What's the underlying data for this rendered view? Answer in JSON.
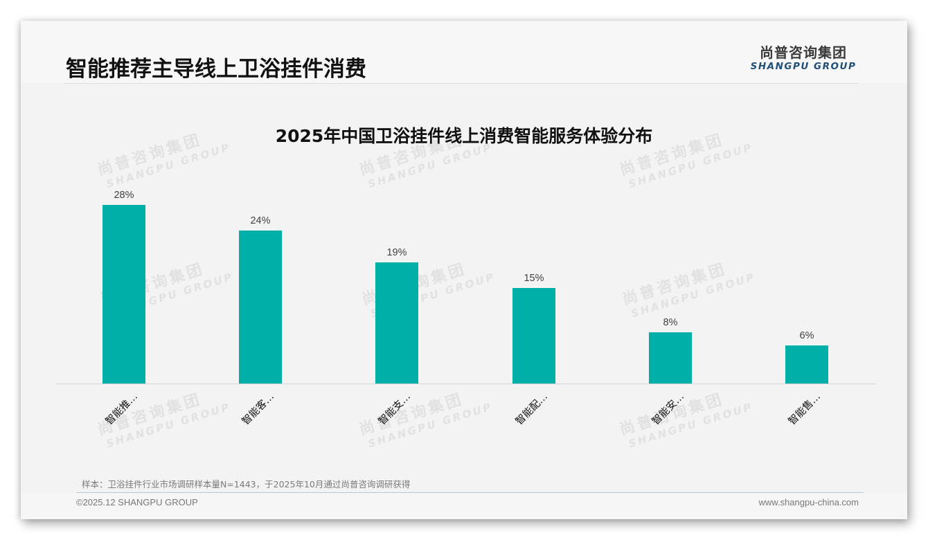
{
  "header": {
    "page_title": "智能推荐主导线上卫浴挂件消费",
    "logo_cn": "尚普咨询集团",
    "logo_en": "SHANGPU GROUP"
  },
  "watermark": {
    "cn": "尚普咨询集团",
    "en": "SHANGPU GROUP"
  },
  "colors": {
    "bar": "#00b0a8",
    "background": "#f3f3f3",
    "logo_en": "#1f4e79"
  },
  "chart_data": {
    "type": "bar",
    "title": "2025年中国卫浴挂件线上消费智能服务体验分布",
    "categories": [
      "智能推…",
      "智能客…",
      "智能支…",
      "智能配…",
      "智能安…",
      "智能售…"
    ],
    "values": [
      28,
      24,
      19,
      15,
      8,
      6
    ],
    "value_labels": [
      "28%",
      "24%",
      "19%",
      "15%",
      "8%",
      "6%"
    ],
    "unit": "%",
    "xlabel": "",
    "ylabel": "",
    "ylim": [
      0,
      30
    ],
    "grid": false,
    "legend": "none",
    "x_tick_rotation": -45
  },
  "footer": {
    "note": "样本：卫浴挂件行业市场调研样本量N=1443，于2025年10月通过尚普咨询调研获得",
    "copyright": "©2025.12 SHANGPU GROUP",
    "website": "www.shangpu-china.com"
  }
}
